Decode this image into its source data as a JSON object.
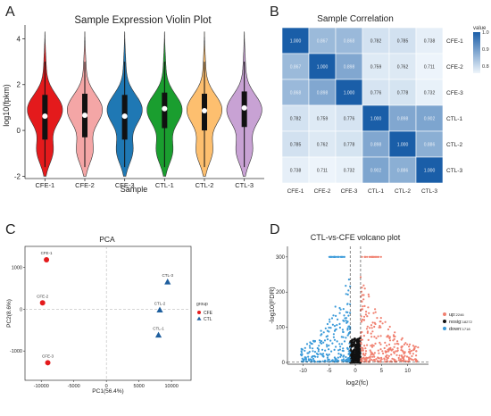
{
  "panels": {
    "A": {
      "letter": "A",
      "chart_data": {
        "type": "violin",
        "title": "Sample Expression Violin Plot",
        "xlabel": "Sample",
        "ylabel": "log10(fpkm)",
        "ylim": [
          -2.1,
          4.6
        ],
        "yticks": [
          -2,
          0,
          2,
          4
        ],
        "categories": [
          "CFE-1",
          "CFE-2",
          "CFE-3",
          "CTL-1",
          "CTL-2",
          "CTL-3"
        ],
        "colors": [
          "#e41a1c",
          "#f4a6a6",
          "#1f78b4",
          "#1a9e2f",
          "#fdbf6f",
          "#c8a2d4"
        ],
        "median": [
          0.62,
          0.66,
          0.62,
          0.95,
          0.86,
          0.98
        ],
        "q1": [
          -0.4,
          -0.3,
          -0.4,
          0.1,
          0.0,
          0.15
        ],
        "q3": [
          1.55,
          1.6,
          1.55,
          1.65,
          1.6,
          1.7
        ]
      }
    },
    "B": {
      "letter": "B",
      "chart_data": {
        "type": "heatmap",
        "title": "Sample Correlation",
        "rows": [
          "CFE-1",
          "CFE-2",
          "CFE-3",
          "CTL-1",
          "CTL-2",
          "CTL-3"
        ],
        "cols": [
          "CFE-1",
          "CFE-2",
          "CFE-3",
          "CTL-1",
          "CTL-2",
          "CTL-3"
        ],
        "values": [
          [
            "1.000",
            "0.867",
            "0.868",
            "0.782",
            "0.785",
            "0.738"
          ],
          [
            "0.867",
            "1.000",
            "0.898",
            "0.759",
            "0.762",
            "0.711"
          ],
          [
            "0.868",
            "0.898",
            "1.000",
            "0.776",
            "0.778",
            "0.732"
          ],
          [
            "0.782",
            "0.759",
            "0.776",
            "1.000",
            "0.898",
            "0.902"
          ],
          [
            "0.785",
            "0.762",
            "0.778",
            "0.898",
            "1.000",
            "0.886"
          ],
          [
            "0.738",
            "0.711",
            "0.732",
            "0.902",
            "0.886",
            "1.000"
          ]
        ],
        "legend_title": "value",
        "legend_ticks": [
          "1.0",
          "0.9",
          "0.8"
        ],
        "color_low": "#eef5fb",
        "color_high": "#1a5ea8"
      }
    },
    "C": {
      "letter": "C",
      "chart_data": {
        "type": "scatter",
        "title": "PCA",
        "xlabel": "PC1(56.4%)",
        "ylabel": "PC2(8.6%)",
        "xlim": [
          -12500,
          13000
        ],
        "ylim": [
          -1700,
          1500
        ],
        "xticks": [
          -10000,
          -5000,
          0,
          5000,
          10000
        ],
        "yticks": [
          -1000,
          0,
          1000
        ],
        "legend_title": "group",
        "series": [
          {
            "name": "CFE",
            "color": "#e41a1c",
            "marker": "circle",
            "points": [
              {
                "label": "CFE-1",
                "x": -9200,
                "y": 1180
              },
              {
                "label": "CFE-2",
                "x": -9800,
                "y": 150
              },
              {
                "label": "CFE-3",
                "x": -9000,
                "y": -1280
              }
            ]
          },
          {
            "name": "CTL",
            "color": "#1f5f9e",
            "marker": "triangle",
            "points": [
              {
                "label": "CTL-3",
                "x": 9400,
                "y": 650
              },
              {
                "label": "CTL-2",
                "x": 8200,
                "y": -20
              },
              {
                "label": "CTL-1",
                "x": 8000,
                "y": -620
              }
            ]
          }
        ]
      }
    },
    "D": {
      "letter": "D",
      "chart_data": {
        "type": "scatter",
        "title": "CTL-vs-CFE volcano plot",
        "xlabel": "log2(fc)",
        "ylabel": "-log10(FDR)",
        "xlim": [
          -13,
          14
        ],
        "ylim": [
          -5,
          330
        ],
        "xticks": [
          -10,
          -5,
          0,
          5,
          10
        ],
        "yticks": [
          0,
          100,
          200,
          300
        ],
        "threshold_x": [
          -1,
          1
        ],
        "threshold_y": 2,
        "series": [
          {
            "name": "up",
            "count": "2246",
            "color": "#f08070"
          },
          {
            "name": "nosig",
            "count": "18272",
            "color": "#111111"
          },
          {
            "name": "down",
            "count": "1718",
            "color": "#3a9ad9"
          }
        ]
      }
    }
  }
}
